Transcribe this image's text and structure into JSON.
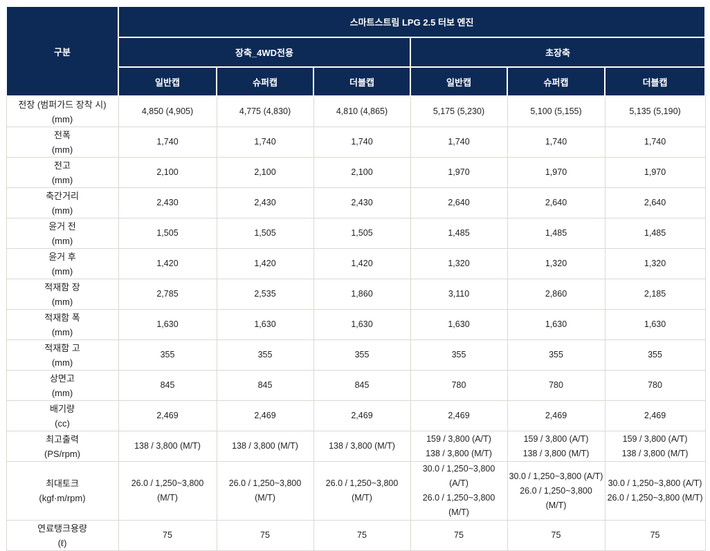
{
  "table": {
    "corner_label": "구분",
    "engine_title": "스마트스트림 LPG 2.5 터보 엔진",
    "groups": [
      {
        "label": "장축_4WD전용",
        "cabs": [
          "일반캡",
          "슈퍼캡",
          "더블캡"
        ]
      },
      {
        "label": "초장축",
        "cabs": [
          "일반캡",
          "슈퍼캡",
          "더블캡"
        ]
      }
    ],
    "rows": [
      {
        "label": "전장 (범퍼가드 장착 시)",
        "unit": "(mm)",
        "values": [
          "4,850 (4,905)",
          "4,775 (4,830)",
          "4,810 (4,865)",
          "5,175 (5,230)",
          "5,100 (5,155)",
          "5,135 (5,190)"
        ]
      },
      {
        "label": "전폭",
        "unit": "(mm)",
        "values": [
          "1,740",
          "1,740",
          "1,740",
          "1,740",
          "1,740",
          "1,740"
        ]
      },
      {
        "label": "전고",
        "unit": "(mm)",
        "values": [
          "2,100",
          "2,100",
          "2,100",
          "1,970",
          "1,970",
          "1,970"
        ]
      },
      {
        "label": "축간거리",
        "unit": "(mm)",
        "values": [
          "2,430",
          "2,430",
          "2,430",
          "2,640",
          "2,640",
          "2,640"
        ]
      },
      {
        "label": "윤거 전",
        "unit": "(mm)",
        "values": [
          "1,505",
          "1,505",
          "1,505",
          "1,485",
          "1,485",
          "1,485"
        ]
      },
      {
        "label": "윤거 후",
        "unit": "(mm)",
        "values": [
          "1,420",
          "1,420",
          "1,420",
          "1,320",
          "1,320",
          "1,320"
        ]
      },
      {
        "label": "적재함 장",
        "unit": "(mm)",
        "values": [
          "2,785",
          "2,535",
          "1,860",
          "3,110",
          "2,860",
          "2,185"
        ]
      },
      {
        "label": "적재함 폭",
        "unit": "(mm)",
        "values": [
          "1,630",
          "1,630",
          "1,630",
          "1,630",
          "1,630",
          "1,630"
        ]
      },
      {
        "label": "적재함 고",
        "unit": "(mm)",
        "values": [
          "355",
          "355",
          "355",
          "355",
          "355",
          "355"
        ]
      },
      {
        "label": "상면고",
        "unit": "(mm)",
        "values": [
          "845",
          "845",
          "845",
          "780",
          "780",
          "780"
        ]
      },
      {
        "label": "배기량",
        "unit": "(cc)",
        "values": [
          "2,469",
          "2,469",
          "2,469",
          "2,469",
          "2,469",
          "2,469"
        ]
      },
      {
        "label": "최고출력",
        "unit": "(PS/rpm)",
        "values": [
          "138 / 3,800 (M/T)",
          "138 / 3,800 (M/T)",
          "138 / 3,800 (M/T)",
          "159 / 3,800 (A/T)\n138 / 3,800 (M/T)",
          "159 / 3,800 (A/T)\n138 / 3,800 (M/T)",
          "159 / 3,800 (A/T)\n138 / 3,800 (M/T)"
        ]
      },
      {
        "label": "최대토크",
        "unit": "(kgf·m/rpm)",
        "values": [
          "26.0 / 1,250~3,800 (M/T)",
          "26.0 / 1,250~3,800 (M/T)",
          "26.0 / 1,250~3,800 (M/T)",
          "30.0 / 1,250~3,800 (A/T)\n26.0 / 1,250~3,800 (M/T)",
          "30.0 / 1,250~3,800 (A/T)\n26.0 / 1,250~3,800 (M/T)",
          "30.0 / 1,250~3,800 (A/T)\n26.0 / 1,250~3,800 (M/T)"
        ]
      },
      {
        "label": "연료탱크용량",
        "unit": "(ℓ)",
        "values": [
          "75",
          "75",
          "75",
          "75",
          "75",
          "75"
        ]
      }
    ],
    "colors": {
      "header_bg": "#0d2a56",
      "header_text": "#ffffff",
      "body_border": "#ddd8d2",
      "body_text": "#222222"
    }
  }
}
